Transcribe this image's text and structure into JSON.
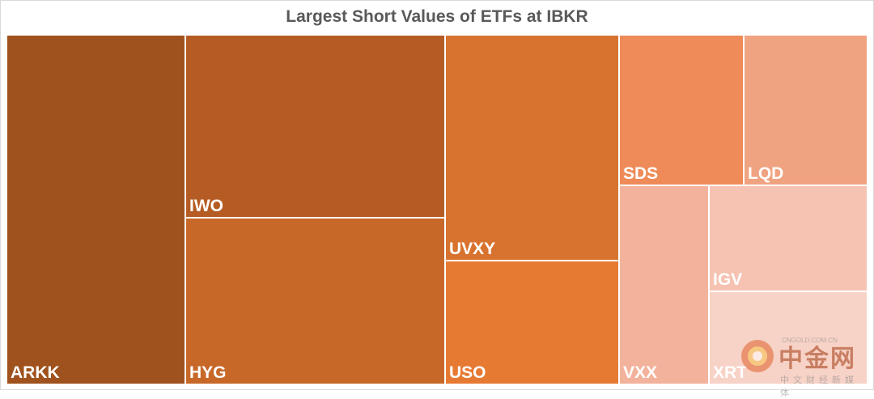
{
  "chart_data": {
    "type": "treemap",
    "title": "Largest Short Values of ETFs at IBKR",
    "items": [
      {
        "name": "ARKK",
        "value": 100,
        "color": "#a0521e"
      },
      {
        "name": "IWO",
        "value": 75,
        "color": "#b55c24"
      },
      {
        "name": "HYG",
        "value": 70,
        "color": "#c76829"
      },
      {
        "name": "UVXY",
        "value": 60,
        "color": "#d8732f"
      },
      {
        "name": "USO",
        "value": 33,
        "color": "#e77a33"
      },
      {
        "name": "SDS",
        "value": 21,
        "color": "#ee8b58"
      },
      {
        "name": "LQD",
        "value": 21,
        "color": "#f0a380"
      },
      {
        "name": "VXX",
        "value": 22,
        "color": "#f3b29c"
      },
      {
        "name": "IGV",
        "value": 14,
        "color": "#f6c3b2"
      },
      {
        "name": "XRT",
        "value": 12,
        "color": "#f7d2c6"
      }
    ]
  },
  "watermark": {
    "main": "中金网",
    "url": "CNGOLD.COM.CN",
    "sub": "中文财经新媒体"
  }
}
